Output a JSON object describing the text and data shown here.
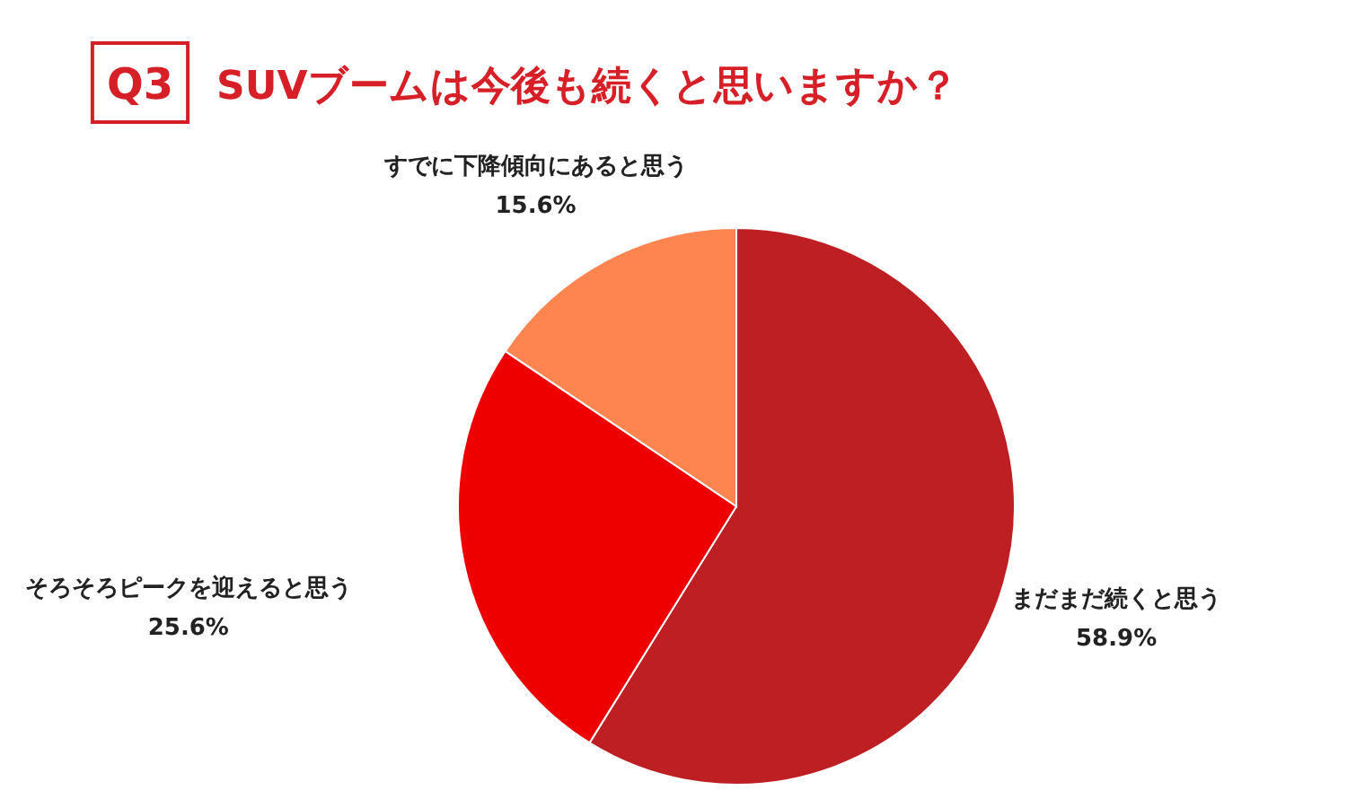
{
  "chart_data": {
    "type": "pie",
    "title": "SUVブームは今後も続くと思いますか？",
    "annotations": [
      "Q3"
    ],
    "categories": [
      "まだまだ続くと思う",
      "そろそろピークを迎えると思う",
      "すでに下降傾向にあると思う"
    ],
    "values": [
      58.9,
      25.6,
      15.6
    ],
    "colors": [
      "#bd1f22",
      "#ee0000",
      "#ff8550"
    ],
    "value_labels": [
      "58.9%",
      "25.6%",
      "15.6%"
    ]
  }
}
